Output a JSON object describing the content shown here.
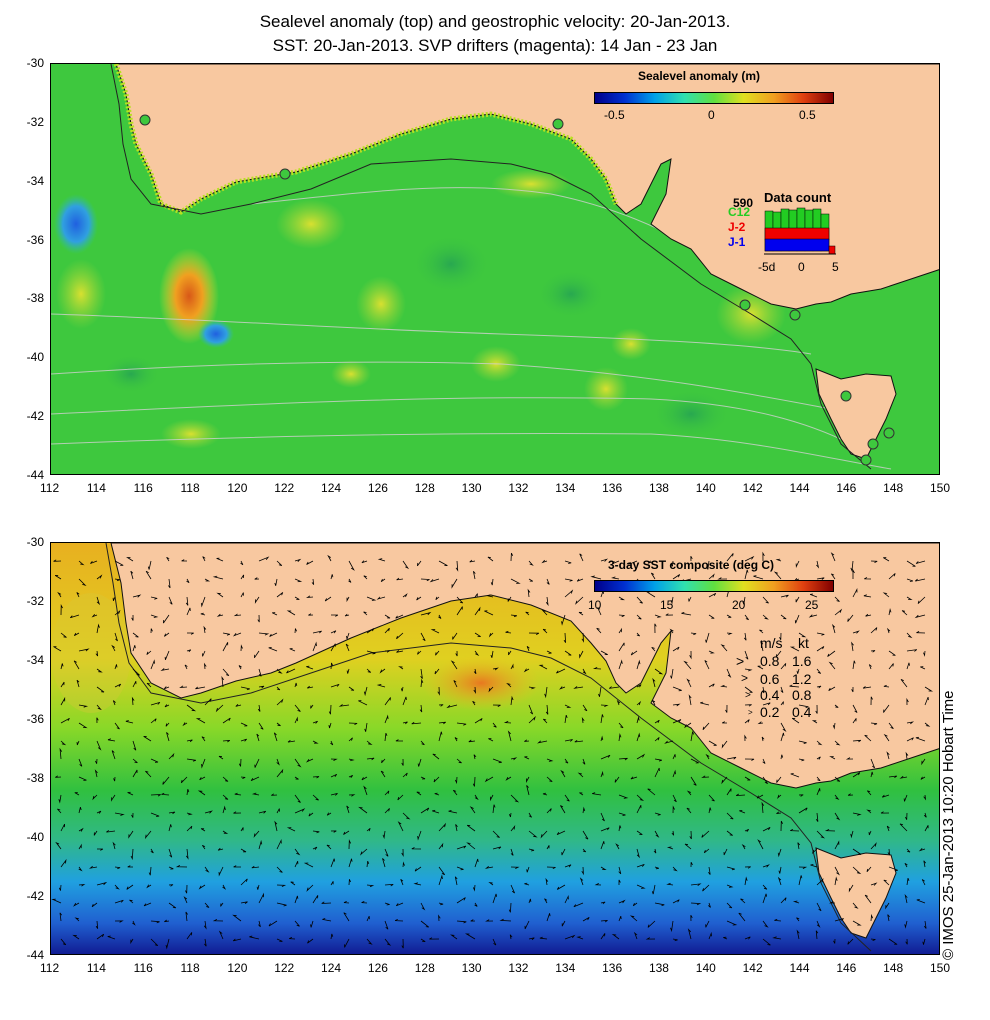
{
  "title_line1": "Sealevel anomaly (top) and geostrophic velocity: 20-Jan-2013.",
  "title_line2": "SST: 20-Jan-2013. SVP drifters (magenta): 14 Jan - 23 Jan",
  "x_ticks": [
    "112",
    "114",
    "116",
    "118",
    "120",
    "122",
    "124",
    "126",
    "128",
    "130",
    "132",
    "134",
    "136",
    "138",
    "140",
    "142",
    "144",
    "146",
    "148",
    "150"
  ],
  "y_ticks": [
    "-30",
    "-32",
    "-34",
    "-36",
    "-38",
    "-40",
    "-42",
    "-44"
  ],
  "top_panel": {
    "colorbar_title": "Sealevel anomaly (m)",
    "colorbar_ticks": [
      "-0.5",
      "0",
      "0.5"
    ],
    "data_count": {
      "title": "Data count",
      "total": "590",
      "series": [
        {
          "name": "C12",
          "color": "#22cc22"
        },
        {
          "name": "J-2",
          "color": "#ee0000"
        },
        {
          "name": "J-1",
          "color": "#0000ee"
        }
      ],
      "x_ticks": [
        "-5d",
        "0",
        "5"
      ]
    }
  },
  "bottom_panel": {
    "colorbar_title": "3-day SST composite (deg C)",
    "colorbar_ticks": [
      "10",
      "15",
      "20",
      "25"
    ],
    "velocity_legend": {
      "header_ms": "m/s",
      "header_kt": "kt",
      "rows": [
        {
          "ms": "0.8",
          "kt": "1.6"
        },
        {
          "ms": "0.6",
          "kt": "1.2"
        },
        {
          "ms": "0.4",
          "kt": "0.8"
        },
        {
          "ms": "0.2",
          "kt": "0.4"
        }
      ]
    }
  },
  "copyright": "© IMOS 25-Jan-2013 10:20 Hobart Time",
  "colors": {
    "land": "#f8c8a0",
    "sla_ocean": "#3ec83e",
    "sst_warm": "#f0c020"
  }
}
